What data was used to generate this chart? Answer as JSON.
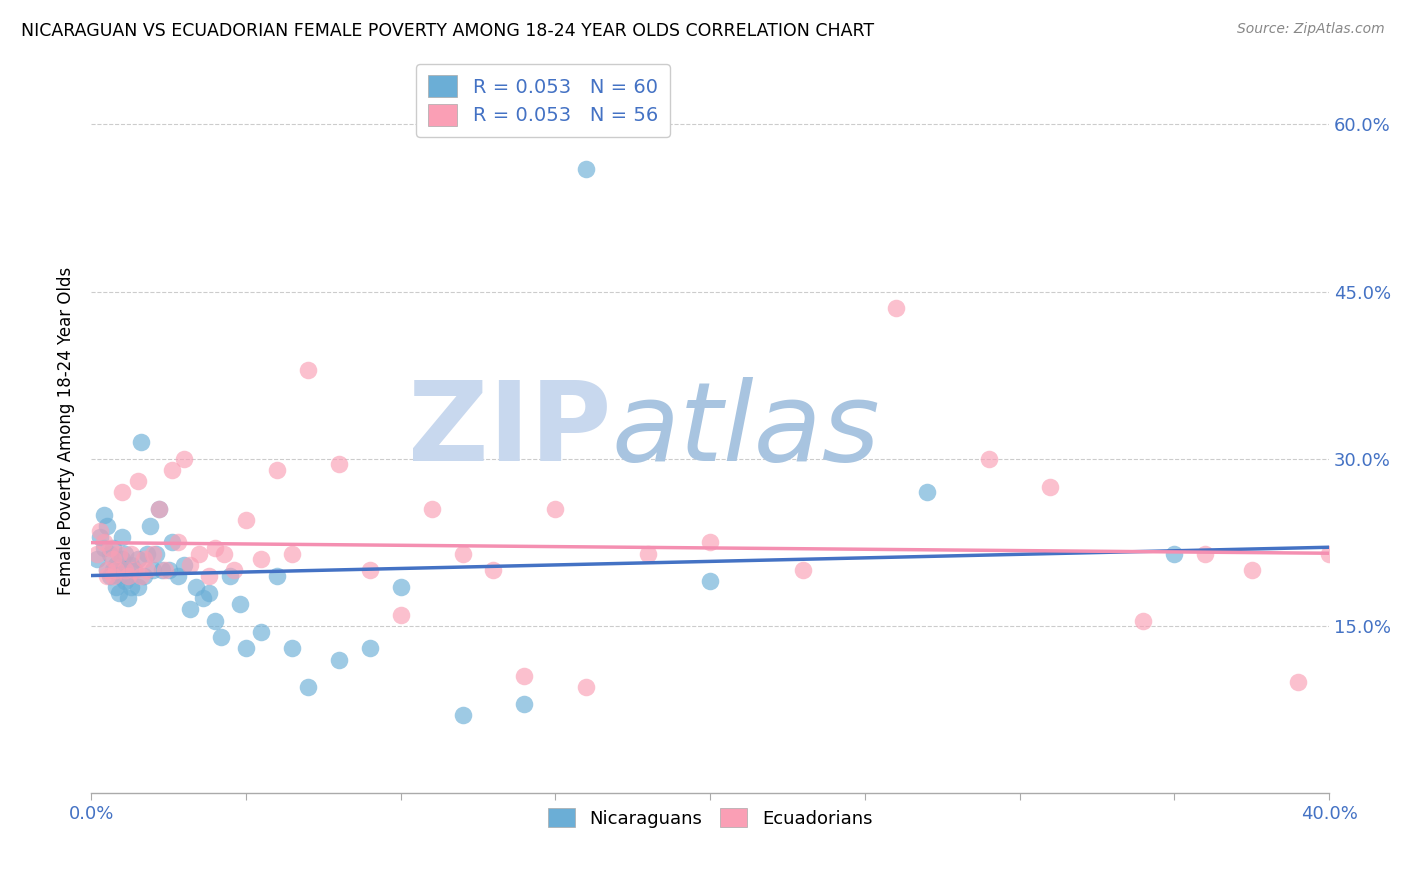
{
  "title": "NICARAGUAN VS ECUADORIAN FEMALE POVERTY AMONG 18-24 YEAR OLDS CORRELATION CHART",
  "source": "Source: ZipAtlas.com",
  "ylabel": "Female Poverty Among 18-24 Year Olds",
  "xlim": [
    0.0,
    0.4
  ],
  "ylim": [
    0.0,
    0.65
  ],
  "ytick_vals": [
    0.15,
    0.3,
    0.45,
    0.6
  ],
  "ytick_labels": [
    "15.0%",
    "30.0%",
    "45.0%",
    "60.0%"
  ],
  "color_nicaraguan": "#6baed6",
  "color_ecuadorian": "#fa9fb5",
  "color_line_nic": "#4472c4",
  "color_line_ecu": "#f48fb1",
  "color_blue_text": "#4472c4",
  "color_pink_text": "#e06090",
  "background_color": "#ffffff",
  "watermark_zip": "ZIP",
  "watermark_atlas": "atlas",
  "watermark_color_zip": "#c8d8ee",
  "watermark_color_atlas": "#a8c4e0",
  "nic_x": [
    0.002,
    0.003,
    0.004,
    0.004,
    0.005,
    0.005,
    0.006,
    0.006,
    0.007,
    0.007,
    0.008,
    0.008,
    0.009,
    0.009,
    0.01,
    0.01,
    0.01,
    0.011,
    0.011,
    0.012,
    0.012,
    0.013,
    0.013,
    0.014,
    0.015,
    0.015,
    0.016,
    0.017,
    0.018,
    0.019,
    0.02,
    0.021,
    0.022,
    0.023,
    0.025,
    0.026,
    0.028,
    0.03,
    0.032,
    0.034,
    0.036,
    0.038,
    0.04,
    0.042,
    0.045,
    0.048,
    0.05,
    0.055,
    0.06,
    0.065,
    0.07,
    0.08,
    0.09,
    0.1,
    0.12,
    0.14,
    0.16,
    0.2,
    0.27,
    0.35
  ],
  "nic_y": [
    0.21,
    0.23,
    0.25,
    0.22,
    0.2,
    0.24,
    0.195,
    0.215,
    0.22,
    0.2,
    0.185,
    0.205,
    0.18,
    0.195,
    0.21,
    0.23,
    0.2,
    0.19,
    0.215,
    0.175,
    0.195,
    0.185,
    0.205,
    0.2,
    0.185,
    0.21,
    0.315,
    0.195,
    0.215,
    0.24,
    0.2,
    0.215,
    0.255,
    0.2,
    0.2,
    0.225,
    0.195,
    0.205,
    0.165,
    0.185,
    0.175,
    0.18,
    0.155,
    0.14,
    0.195,
    0.17,
    0.13,
    0.145,
    0.195,
    0.13,
    0.095,
    0.12,
    0.13,
    0.185,
    0.07,
    0.08,
    0.56,
    0.19,
    0.27,
    0.215
  ],
  "ecu_x": [
    0.002,
    0.003,
    0.004,
    0.005,
    0.005,
    0.006,
    0.007,
    0.007,
    0.008,
    0.009,
    0.01,
    0.011,
    0.012,
    0.013,
    0.014,
    0.015,
    0.016,
    0.017,
    0.018,
    0.02,
    0.022,
    0.024,
    0.026,
    0.028,
    0.03,
    0.032,
    0.035,
    0.038,
    0.04,
    0.043,
    0.046,
    0.05,
    0.055,
    0.06,
    0.065,
    0.07,
    0.08,
    0.09,
    0.1,
    0.11,
    0.12,
    0.13,
    0.14,
    0.15,
    0.16,
    0.18,
    0.2,
    0.23,
    0.26,
    0.29,
    0.31,
    0.34,
    0.36,
    0.375,
    0.39,
    0.4
  ],
  "ecu_y": [
    0.215,
    0.235,
    0.225,
    0.2,
    0.195,
    0.22,
    0.195,
    0.21,
    0.2,
    0.215,
    0.27,
    0.2,
    0.195,
    0.215,
    0.2,
    0.28,
    0.195,
    0.21,
    0.2,
    0.215,
    0.255,
    0.2,
    0.29,
    0.225,
    0.3,
    0.205,
    0.215,
    0.195,
    0.22,
    0.215,
    0.2,
    0.245,
    0.21,
    0.29,
    0.215,
    0.38,
    0.295,
    0.2,
    0.16,
    0.255,
    0.215,
    0.2,
    0.105,
    0.255,
    0.095,
    0.215,
    0.225,
    0.2,
    0.435,
    0.3,
    0.275,
    0.155,
    0.215,
    0.2,
    0.1,
    0.215
  ]
}
